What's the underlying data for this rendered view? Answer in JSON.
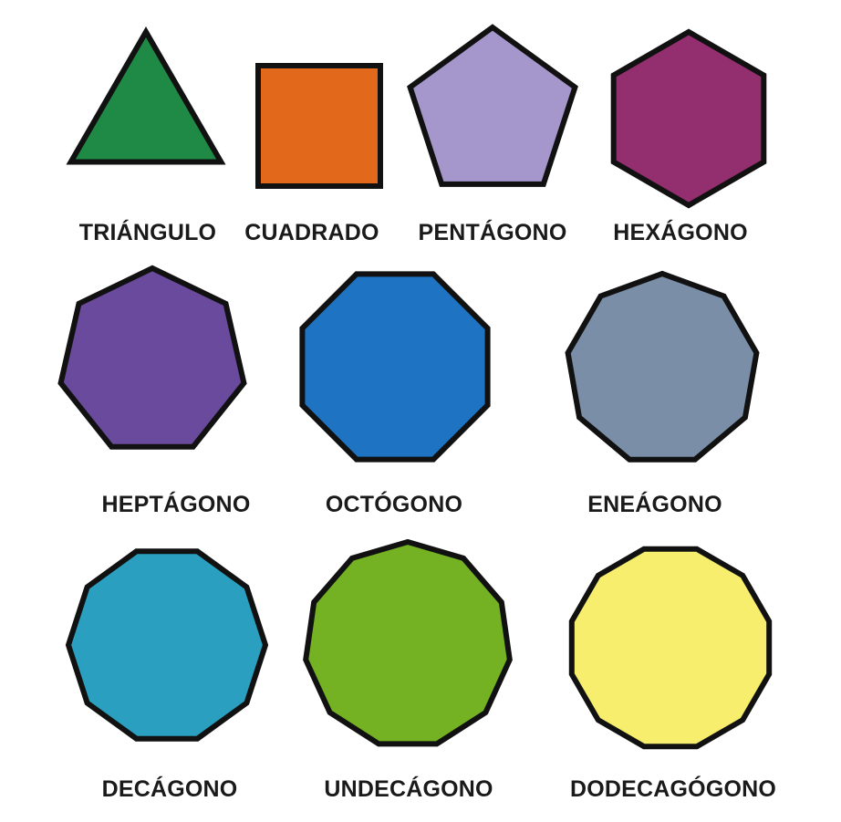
{
  "shapes": [
    {
      "id": "triangle",
      "sides": 3,
      "label": "TRIÁNGULO",
      "fill": "#1f8a45"
    },
    {
      "id": "square",
      "sides": 4,
      "label": "CUADRADO",
      "fill": "#e2691b"
    },
    {
      "id": "pentagon",
      "sides": 5,
      "label": "PENTÁGONO",
      "fill": "#a597cb"
    },
    {
      "id": "hexagon",
      "sides": 6,
      "label": "HEXÁGONO",
      "fill": "#932f6f"
    },
    {
      "id": "heptagon",
      "sides": 7,
      "label": "HEPTÁGONO",
      "fill": "#6a4a9c"
    },
    {
      "id": "octagon",
      "sides": 8,
      "label": "OCTÓGONO",
      "fill": "#1e74c2"
    },
    {
      "id": "enneagon",
      "sides": 9,
      "label": "ENEÁGONO",
      "fill": "#7b8ea8"
    },
    {
      "id": "decagon",
      "sides": 10,
      "label": "DECÁGONO",
      "fill": "#2a9fc0"
    },
    {
      "id": "hendecagon",
      "sides": 11,
      "label": "UNDECÁGONO",
      "fill": "#74b223"
    },
    {
      "id": "dodecagon",
      "sides": 12,
      "label": "DODECAGÓGONO",
      "fill": "#f6ee6c"
    }
  ],
  "stroke_color": "#111111"
}
